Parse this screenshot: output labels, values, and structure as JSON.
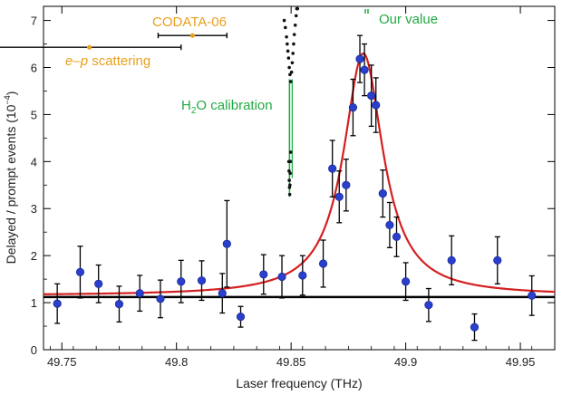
{
  "chart_data": {
    "type": "scatter",
    "xlabel": "Laser frequency (THz)",
    "ylabel": "Delayed / prompt events (10",
    "ylabel_exp": "−4",
    "ylabel_close": ")",
    "xlim": [
      49.742,
      49.965
    ],
    "ylim": [
      0,
      7.3
    ],
    "x_ticks": [
      49.75,
      49.8,
      49.85,
      49.9,
      49.95
    ],
    "x_tick_labels": [
      "49.75",
      "49.8",
      "49.85",
      "49.9",
      "49.95"
    ],
    "y_ticks": [
      0,
      1,
      2,
      3,
      4,
      5,
      6,
      7
    ],
    "y_tick_labels": [
      "0",
      "1",
      "2",
      "3",
      "4",
      "5",
      "6",
      "7"
    ],
    "grid": false,
    "colors": {
      "data_points": "#2a3fcc",
      "fit_curve": "#d42020",
      "baseline": "#000000",
      "calibration": "#22aa44",
      "literature": "#e8a020",
      "our_value": "#22aa44",
      "error_bars": "#000000"
    },
    "series": [
      {
        "type": "scatter-errorbar",
        "x": [
          49.748,
          49.758,
          49.766,
          49.775,
          49.784,
          49.793,
          49.802,
          49.811,
          49.82,
          49.822,
          49.828,
          49.838,
          49.846,
          49.855,
          49.864,
          49.868,
          49.871,
          49.874,
          49.877,
          49.88,
          49.882,
          49.885,
          49.887,
          49.89,
          49.893,
          49.896,
          49.9,
          49.91,
          49.92,
          49.93,
          49.94,
          49.955
        ],
        "y": [
          0.98,
          1.65,
          1.4,
          0.97,
          1.2,
          1.08,
          1.45,
          1.47,
          1.2,
          2.25,
          0.7,
          1.6,
          1.55,
          1.58,
          1.83,
          3.85,
          3.25,
          3.5,
          5.15,
          6.18,
          5.95,
          5.4,
          5.2,
          3.32,
          2.65,
          2.4,
          1.45,
          0.95,
          1.9,
          0.48,
          1.9,
          1.15
        ],
        "err": [
          0.42,
          0.55,
          0.4,
          0.38,
          0.38,
          0.4,
          0.45,
          0.42,
          0.42,
          0.92,
          0.22,
          0.42,
          0.45,
          0.42,
          0.5,
          0.6,
          0.55,
          0.55,
          0.6,
          0.5,
          0.55,
          0.65,
          0.58,
          0.5,
          0.48,
          0.42,
          0.4,
          0.35,
          0.52,
          0.28,
          0.5,
          0.42
        ]
      },
      {
        "type": "lorentzian-fit",
        "center": 49.8815,
        "amplitude": 5.15,
        "half_width": 0.0105,
        "baseline": 1.15
      },
      {
        "type": "baseline",
        "y": 1.12
      }
    ],
    "annotations": {
      "codata": {
        "label": "CODATA-06",
        "x": 49.807,
        "x_err_left": 0.015,
        "x_err_right": 0.015,
        "y": 6.68
      },
      "ep_scattering": {
        "label_prefix": "e",
        "label_dash": "–",
        "label_p": "p",
        "label_suffix": " scattering",
        "x": 49.762,
        "x_err_left": 0.05,
        "x_err_right": 0.04,
        "y": 6.43
      },
      "h2o": {
        "label_h": "H",
        "label_sub": "2",
        "label_rest": "O calibration"
      },
      "our_value": {
        "label": "Our value",
        "x": 49.8815,
        "y": 7.0
      }
    },
    "h2o_calibration": {
      "upper": [
        [
          49.847,
          7.0
        ],
        [
          49.8475,
          6.85
        ],
        [
          49.848,
          6.65
        ],
        [
          49.8483,
          6.5
        ],
        [
          49.8486,
          6.35
        ],
        [
          49.8489,
          6.2
        ],
        [
          49.8492,
          6.0
        ],
        [
          49.8495,
          5.85
        ],
        [
          49.8498,
          5.7
        ],
        [
          49.8502,
          5.9
        ],
        [
          49.8505,
          6.1
        ],
        [
          49.8508,
          6.3
        ],
        [
          49.8511,
          6.5
        ],
        [
          49.8514,
          6.7
        ],
        [
          49.8518,
          6.9
        ],
        [
          49.8522,
          7.1
        ],
        [
          49.8525,
          7.25
        ],
        [
          49.8528,
          7.25
        ]
      ],
      "lower": [
        [
          49.849,
          4.0
        ],
        [
          49.8491,
          3.8
        ],
        [
          49.8492,
          3.6
        ],
        [
          49.8493,
          3.45
        ],
        [
          49.8494,
          3.3
        ],
        [
          49.8495,
          3.5
        ],
        [
          49.8496,
          3.75
        ],
        [
          49.8497,
          4.0
        ],
        [
          49.8498,
          4.2
        ]
      ],
      "line_top": 5.75,
      "line_bottom": 3.25
    }
  }
}
